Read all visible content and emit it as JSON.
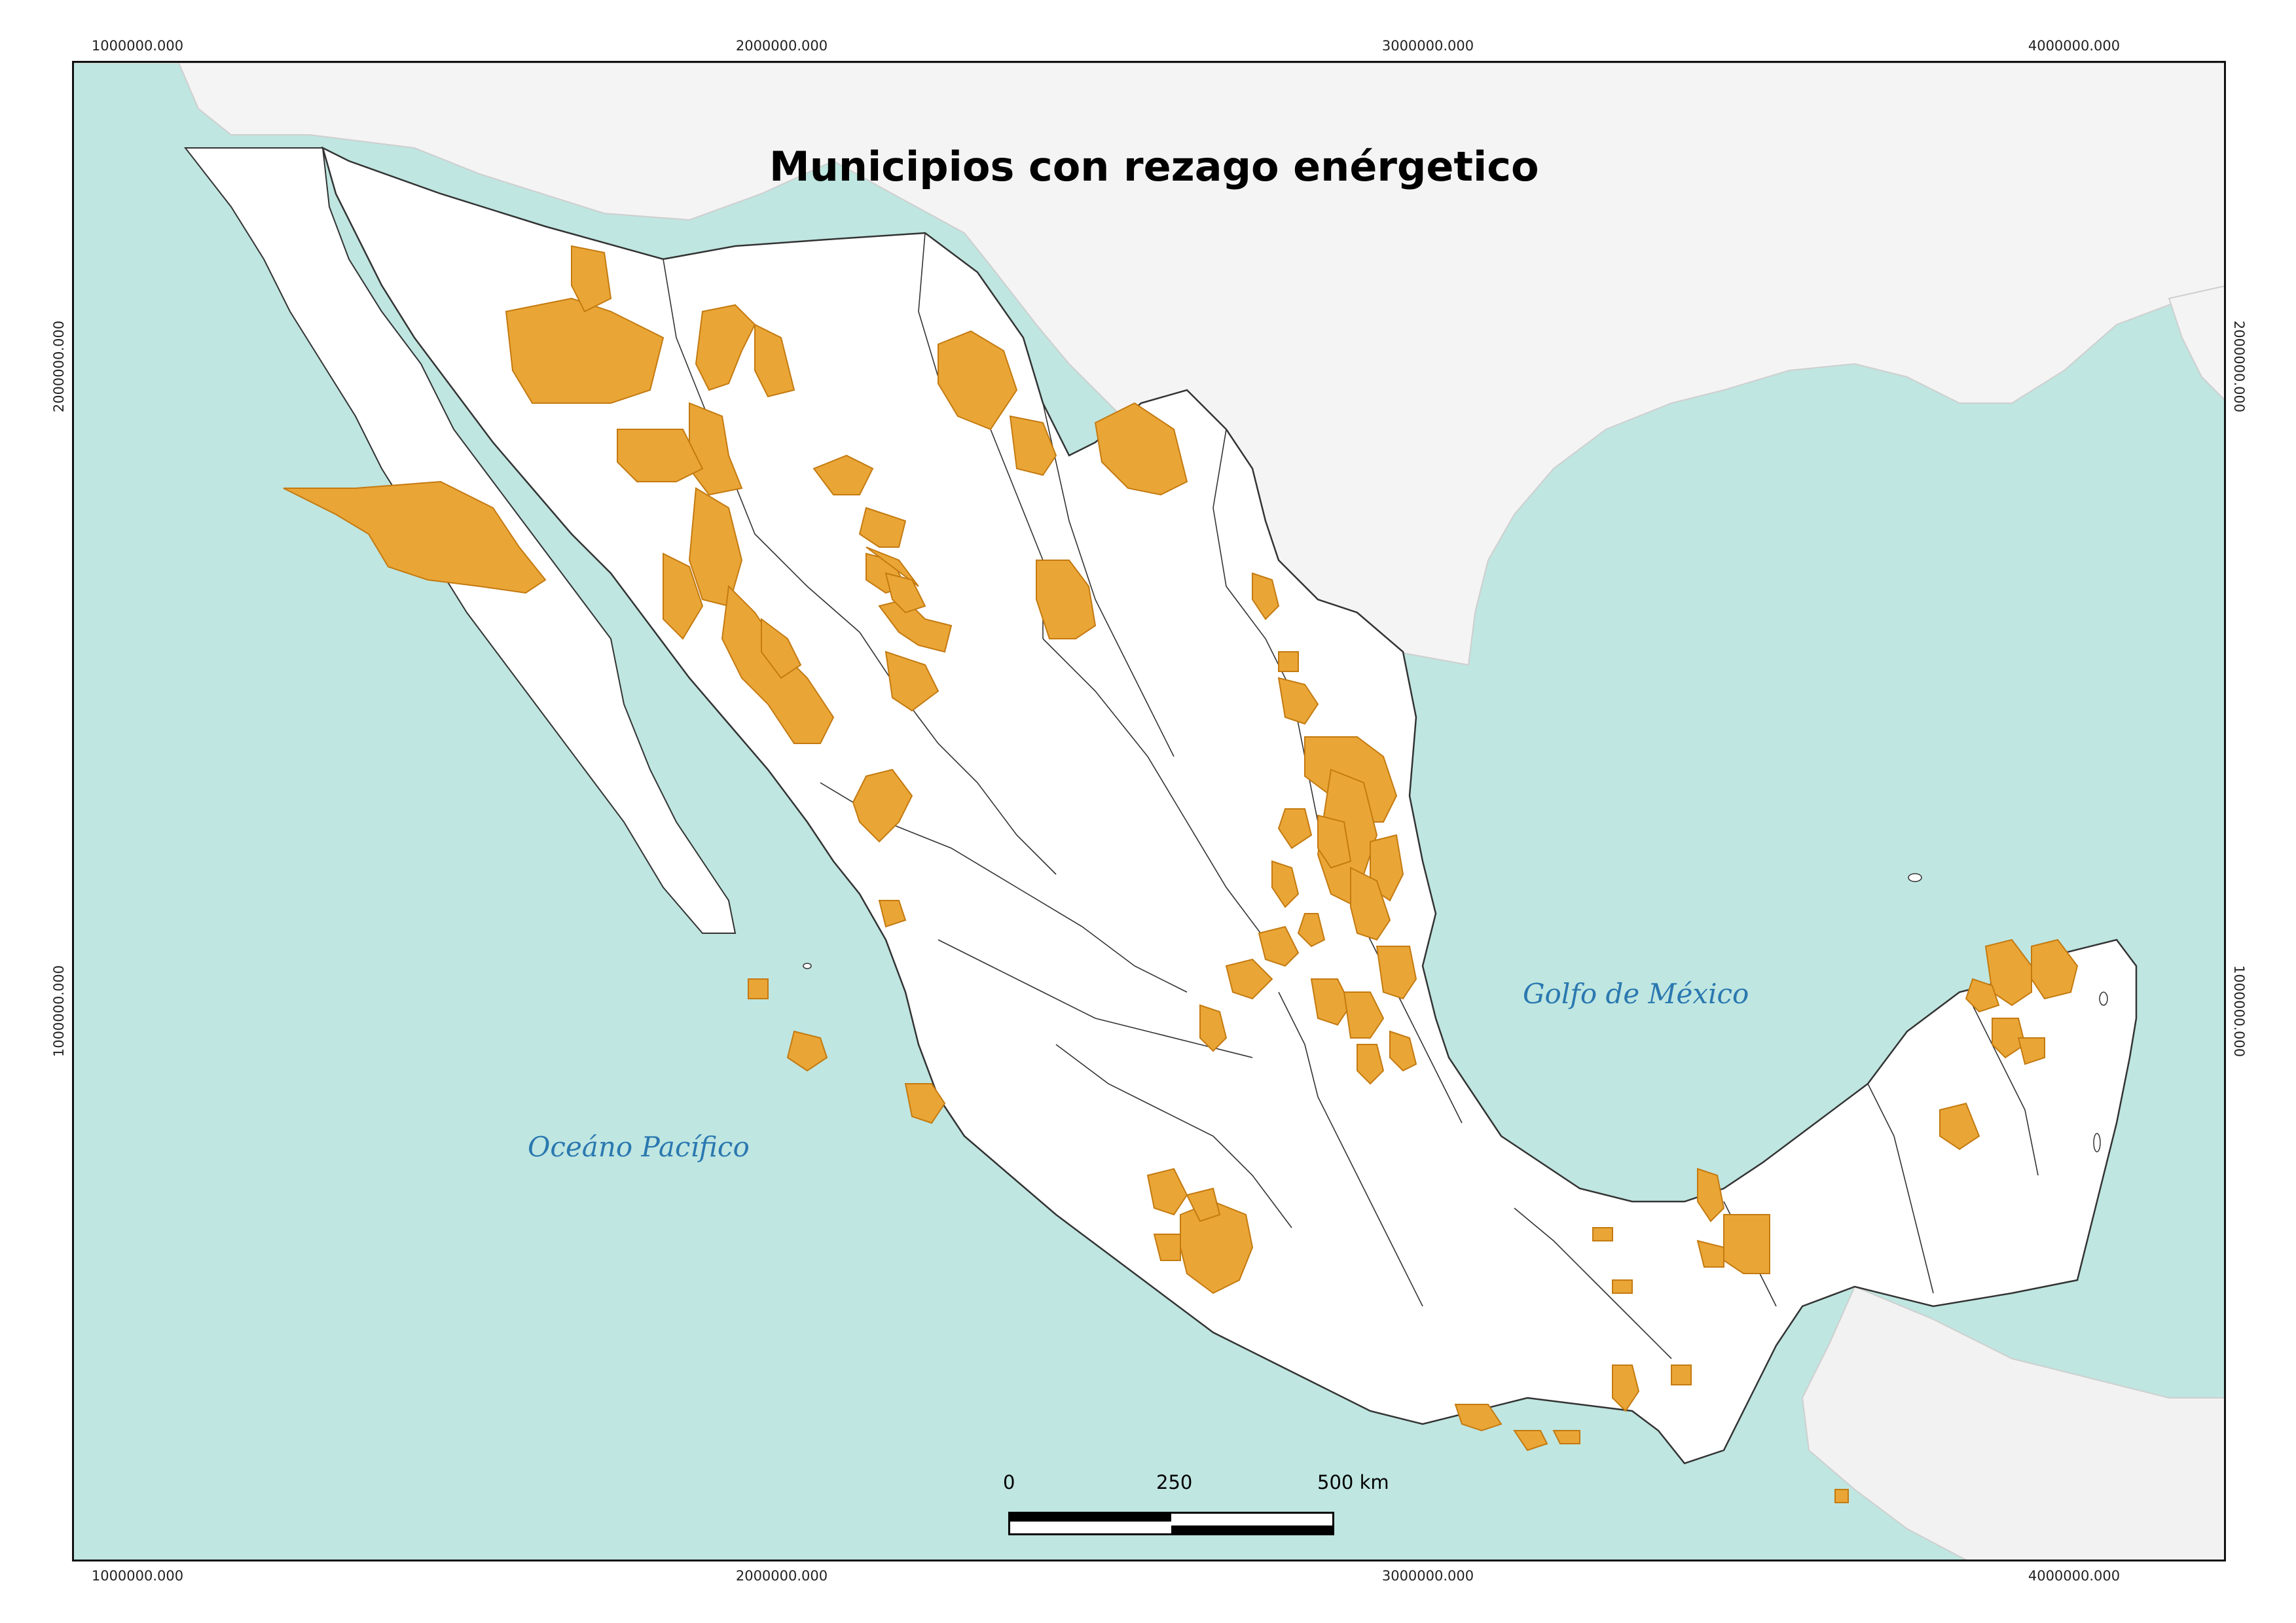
{
  "map": {
    "title": "Municipios con rezago enérgetico",
    "grid_labels": {
      "x_top": [
        "1000000.000",
        "2000000.000",
        "3000000.000",
        "4000000.000"
      ],
      "x_bottom": [
        "1000000.000",
        "2000000.000",
        "3000000.000",
        "4000000.000"
      ],
      "y_left": [
        "2000000.000",
        "1000000.000"
      ],
      "y_right": [
        "2000000.000",
        "1000000.000"
      ]
    },
    "water_labels": {
      "pacific": "Oceáno Pacífico",
      "gulf": "Golfo de México"
    },
    "scale_bar": {
      "labels": [
        "0",
        "250",
        "500 km"
      ]
    },
    "colors": {
      "ocean": "#bfe6e1",
      "land": "#ffffff",
      "relief": "#d9d9d9",
      "highlight_fill": "#e9a636",
      "highlight_stroke": "#c47a10",
      "state_border": "#333333",
      "water_label": "#2a78b0"
    },
    "legend_meaning": "Municipios con rezago enérgetico"
  }
}
